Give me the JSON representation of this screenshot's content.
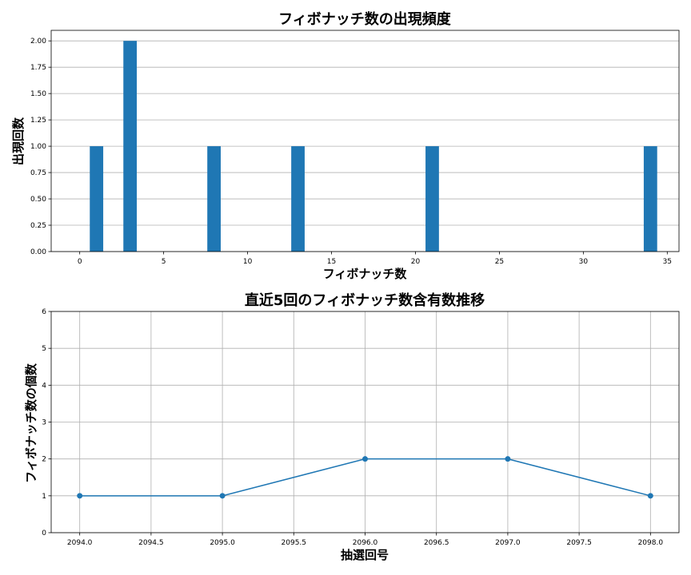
{
  "chart_data": [
    {
      "type": "bar",
      "title": "フィボナッチ数の出現頻度",
      "xlabel": "フィボナッチ数",
      "ylabel": "出現回数",
      "x": [
        1,
        3,
        8,
        13,
        21,
        34
      ],
      "values": [
        1,
        2,
        1,
        1,
        1,
        1
      ],
      "xlim": [
        -1.7,
        35.7
      ],
      "ylim": [
        0,
        2.1
      ],
      "xticks": [
        0,
        5,
        10,
        15,
        20,
        25,
        30,
        35
      ],
      "xtick_labels": [
        "0",
        "5",
        "10",
        "15",
        "20",
        "25",
        "30",
        "35"
      ],
      "yticks": [
        0,
        0.25,
        0.5,
        0.75,
        1.0,
        1.25,
        1.5,
        1.75,
        2.0
      ],
      "ytick_labels": [
        "0.00",
        "0.25",
        "0.50",
        "0.75",
        "1.00",
        "1.25",
        "1.50",
        "1.75",
        "2.00"
      ],
      "grid": "y",
      "bar_color": "#1f77b4"
    },
    {
      "type": "line",
      "title": "直近5回のフィボナッチ数含有数推移",
      "xlabel": "抽選回号",
      "ylabel": "フィボナッチ数の個数",
      "x": [
        2094,
        2095,
        2096,
        2097,
        2098
      ],
      "y": [
        1,
        1,
        2,
        2,
        1
      ],
      "xlim": [
        2093.8,
        2098.2
      ],
      "ylim": [
        0,
        6
      ],
      "xticks": [
        2094.0,
        2094.5,
        2095.0,
        2095.5,
        2096.0,
        2096.5,
        2097.0,
        2097.5,
        2098.0
      ],
      "xtick_labels": [
        "2094.0",
        "2094.5",
        "2095.0",
        "2095.5",
        "2096.0",
        "2096.5",
        "2097.0",
        "2097.5",
        "2098.0"
      ],
      "yticks": [
        0,
        1,
        2,
        3,
        4,
        5,
        6
      ],
      "ytick_labels": [
        "0",
        "1",
        "2",
        "3",
        "4",
        "5",
        "6"
      ],
      "grid": "both",
      "markers": true,
      "line_color": "#1f77b4"
    }
  ]
}
